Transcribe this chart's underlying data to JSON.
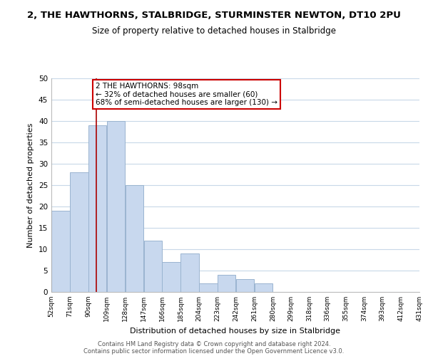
{
  "title": "2, THE HAWTHORNS, STALBRIDGE, STURMINSTER NEWTON, DT10 2PU",
  "subtitle": "Size of property relative to detached houses in Stalbridge",
  "xlabel": "Distribution of detached houses by size in Stalbridge",
  "ylabel": "Number of detached properties",
  "bar_left_edges": [
    52,
    71,
    90,
    109,
    128,
    147,
    166,
    185,
    204,
    223,
    242,
    261,
    280,
    299,
    318,
    336,
    355,
    374,
    393,
    412
  ],
  "bar_widths": [
    19,
    19,
    19,
    19,
    19,
    19,
    19,
    19,
    19,
    19,
    19,
    19,
    19,
    19,
    18,
    19,
    19,
    19,
    19,
    19
  ],
  "bar_heights": [
    19,
    28,
    39,
    40,
    25,
    12,
    7,
    9,
    2,
    4,
    3,
    2,
    0,
    0,
    0,
    0,
    0,
    0,
    0,
    0
  ],
  "bar_color": "#c8d8ee",
  "bar_edgecolor": "#9ab4d0",
  "ylim": [
    0,
    50
  ],
  "yticks": [
    0,
    5,
    10,
    15,
    20,
    25,
    30,
    35,
    40,
    45,
    50
  ],
  "xlim": [
    52,
    431
  ],
  "xtick_labels": [
    "52sqm",
    "71sqm",
    "90sqm",
    "109sqm",
    "128sqm",
    "147sqm",
    "166sqm",
    "185sqm",
    "204sqm",
    "223sqm",
    "242sqm",
    "261sqm",
    "280sqm",
    "299sqm",
    "318sqm",
    "336sqm",
    "355sqm",
    "374sqm",
    "393sqm",
    "412sqm",
    "431sqm"
  ],
  "xtick_positions": [
    52,
    71,
    90,
    109,
    128,
    147,
    166,
    185,
    204,
    223,
    242,
    261,
    280,
    299,
    318,
    336,
    355,
    374,
    393,
    412,
    431
  ],
  "vline_x": 98,
  "vline_color": "#aa0000",
  "annotation_text": "2 THE HAWTHORNS: 98sqm\n← 32% of detached houses are smaller (60)\n68% of semi-detached houses are larger (130) →",
  "annotation_box_color": "#ffffff",
  "annotation_box_edgecolor": "#cc0000",
  "grid_color": "#c8d8e8",
  "background_color": "#ffffff",
  "footer_line1": "Contains HM Land Registry data © Crown copyright and database right 2024.",
  "footer_line2": "Contains public sector information licensed under the Open Government Licence v3.0."
}
